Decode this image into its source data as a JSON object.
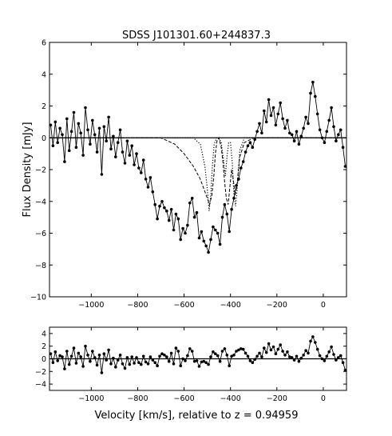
{
  "chart_data": [
    {
      "type": "line",
      "title": "SDSS J101301.60+244837.3",
      "xlabel": "",
      "ylabel": "Flux Density [mJy]",
      "xlim": [
        -1180,
        100
      ],
      "ylim": [
        -10,
        6
      ],
      "xticks": [
        -1000,
        -800,
        -600,
        -400,
        -200,
        0
      ],
      "yticks": [
        -10,
        -8,
        -6,
        -4,
        -2,
        0,
        2,
        4,
        6
      ],
      "grid": false,
      "series": [
        {
          "name": "",
          "style": "solid-markers",
          "x": [
            -1175,
            -1165,
            -1155,
            -1145,
            -1135,
            -1125,
            -1115,
            -1105,
            -1095,
            -1085,
            -1075,
            -1065,
            -1055,
            -1045,
            -1035,
            -1025,
            -1015,
            -1005,
            -995,
            -985,
            -975,
            -965,
            -955,
            -945,
            -935,
            -925,
            -915,
            -905,
            -895,
            -885,
            -875,
            -865,
            -855,
            -845,
            -835,
            -825,
            -815,
            -805,
            -795,
            -785,
            -775,
            -765,
            -755,
            -745,
            -735,
            -725,
            -715,
            -705,
            -695,
            -685,
            -675,
            -665,
            -655,
            -645,
            -635,
            -625,
            -615,
            -605,
            -595,
            -585,
            -575,
            -565,
            -555,
            -545,
            -535,
            -525,
            -515,
            -505,
            -495,
            -485,
            -475,
            -465,
            -455,
            -445,
            -435,
            -425,
            -415,
            -405,
            -395,
            -385,
            -375,
            -365,
            -355,
            -345,
            -335,
            -325,
            -315,
            -305,
            -295,
            -285,
            -275,
            -265,
            -255,
            -245,
            -235,
            -225,
            -215,
            -205,
            -195,
            -185,
            -175,
            -165,
            -155,
            -145,
            -135,
            -125,
            -115,
            -105,
            -95,
            -85,
            -75,
            -65,
            -55,
            -45,
            -35,
            -25,
            -15,
            -5,
            5,
            15,
            25,
            35,
            45,
            55,
            65,
            75,
            85,
            95
          ],
          "y": [
            0.8,
            -0.5,
            1.0,
            -0.3,
            0.6,
            0.2,
            -1.5,
            1.2,
            -0.8,
            0.4,
            1.6,
            -0.6,
            0.9,
            0.3,
            -1.1,
            1.9,
            0.5,
            -0.4,
            1.1,
            0.2,
            -0.9,
            0.6,
            -2.3,
            0.7,
            -0.2,
            1.3,
            -0.7,
            0.1,
            -1.2,
            -0.3,
            0.5,
            -0.9,
            -1.6,
            -0.2,
            -1.1,
            -0.5,
            -1.7,
            -1.0,
            -1.9,
            -2.2,
            -1.4,
            -2.6,
            -3.1,
            -2.5,
            -3.4,
            -4.2,
            -5.1,
            -4.3,
            -4.0,
            -4.4,
            -4.6,
            -5.2,
            -4.5,
            -5.8,
            -4.8,
            -5.1,
            -6.4,
            -5.7,
            -6.0,
            -5.5,
            -4.1,
            -3.8,
            -5.0,
            -4.7,
            -6.3,
            -5.9,
            -6.5,
            -6.8,
            -7.2,
            -6.4,
            -5.6,
            -5.8,
            -6.0,
            -6.7,
            -5.0,
            -4.2,
            -4.8,
            -5.9,
            -4.5,
            -3.8,
            -3.0,
            -2.6,
            -1.9,
            -1.5,
            -0.9,
            -0.5,
            -0.3,
            -0.6,
            -0.1,
            0.4,
            0.9,
            0.3,
            1.7,
            1.0,
            2.4,
            1.4,
            1.9,
            0.8,
            1.5,
            2.2,
            1.2,
            0.6,
            1.1,
            0.3,
            0.2,
            -0.2,
            0.4,
            -0.4,
            0.1,
            0.6,
            1.3,
            0.9,
            2.8,
            3.5,
            2.6,
            1.5,
            0.5,
            0.0,
            -0.3,
            0.4,
            1.1,
            1.9,
            0.7,
            -0.2,
            0.2,
            0.5,
            -0.6,
            -1.8
          ]
        },
        {
          "name": "",
          "style": "dashed",
          "x": [
            -1180,
            -700,
            -640,
            -600,
            -560,
            -530,
            -505,
            -490,
            -480,
            -472,
            -465,
            -458,
            -450,
            -440,
            -432,
            -425,
            -418,
            -410,
            -402,
            -395,
            -388,
            -380,
            -372,
            -360,
            -340,
            -300,
            100
          ],
          "y": [
            0,
            0,
            -0.4,
            -1.0,
            -1.8,
            -2.6,
            -3.6,
            -4.2,
            -3.6,
            -2.4,
            -1.0,
            -0.2,
            0.0,
            -0.6,
            -1.6,
            -2.8,
            -3.8,
            -4.2,
            -3.0,
            -2.0,
            -2.6,
            -3.6,
            -3.0,
            -1.2,
            -0.3,
            0,
            0
          ]
        },
        {
          "name": "",
          "style": "dotted",
          "x": [
            -1180,
            -560,
            -530,
            -510,
            -500,
            -492,
            -485,
            -478,
            -470,
            -460,
            -450,
            -440,
            -430,
            -422,
            -415,
            -408,
            -400,
            -392,
            -385,
            -378,
            -370,
            -360,
            -340,
            100
          ],
          "y": [
            0,
            0,
            -0.4,
            -1.8,
            -3.2,
            -4.6,
            -3.6,
            -1.8,
            -0.4,
            0,
            0,
            -0.3,
            -1.4,
            -2.4,
            -1.2,
            -0.3,
            -0.3,
            -1.6,
            -3.6,
            -4.3,
            -3.0,
            -0.8,
            0,
            0
          ]
        }
      ]
    },
    {
      "type": "line",
      "title": "",
      "xlabel": "Velocity [km/s], relative to z = 0.94959",
      "ylabel": "",
      "xlim": [
        -1180,
        100
      ],
      "ylim": [
        -5,
        5
      ],
      "xticks": [
        -1000,
        -800,
        -600,
        -400,
        -200,
        0
      ],
      "yticks": [
        -4,
        -2,
        0,
        2,
        4
      ],
      "grid": false,
      "series": [
        {
          "name": "",
          "style": "solid-markers",
          "x": [
            -1175,
            -1165,
            -1155,
            -1145,
            -1135,
            -1125,
            -1115,
            -1105,
            -1095,
            -1085,
            -1075,
            -1065,
            -1055,
            -1045,
            -1035,
            -1025,
            -1015,
            -1005,
            -995,
            -985,
            -975,
            -965,
            -955,
            -945,
            -935,
            -925,
            -915,
            -905,
            -895,
            -885,
            -875,
            -865,
            -855,
            -845,
            -835,
            -825,
            -815,
            -805,
            -795,
            -785,
            -775,
            -765,
            -755,
            -745,
            -735,
            -725,
            -715,
            -705,
            -695,
            -685,
            -675,
            -665,
            -655,
            -645,
            -635,
            -625,
            -615,
            -605,
            -595,
            -585,
            -575,
            -565,
            -555,
            -545,
            -535,
            -525,
            -515,
            -505,
            -495,
            -485,
            -475,
            -465,
            -455,
            -445,
            -435,
            -425,
            -415,
            -405,
            -395,
            -385,
            -375,
            -365,
            -355,
            -345,
            -335,
            -325,
            -315,
            -305,
            -295,
            -285,
            -275,
            -265,
            -255,
            -245,
            -235,
            -225,
            -215,
            -205,
            -195,
            -185,
            -175,
            -165,
            -155,
            -145,
            -135,
            -125,
            -115,
            -105,
            -95,
            -85,
            -75,
            -65,
            -55,
            -45,
            -35,
            -25,
            -15,
            -5,
            5,
            15,
            25,
            35,
            45,
            55,
            65,
            75,
            85,
            95
          ],
          "y": [
            0.8,
            -0.6,
            1.1,
            -0.3,
            0.5,
            0.3,
            -1.6,
            1.2,
            -0.9,
            0.4,
            1.7,
            -0.7,
            0.9,
            0.3,
            -1.2,
            2.0,
            0.6,
            -0.4,
            1.2,
            0.2,
            -1.0,
            0.6,
            -2.2,
            0.8,
            -0.2,
            1.4,
            -0.8,
            0.1,
            -1.3,
            -0.2,
            0.6,
            -0.8,
            -1.5,
            0.2,
            -0.9,
            0.3,
            -0.7,
            0.2,
            -0.6,
            -0.9,
            0.4,
            -0.5,
            -0.8,
            0.3,
            -0.2,
            -0.6,
            -1.1,
            0.4,
            0.8,
            0.6,
            0.3,
            -0.4,
            0.9,
            -0.8,
            1.7,
            1.2,
            -1.1,
            0.0,
            -0.3,
            0.5,
            1.6,
            1.2,
            -0.4,
            -0.3,
            -1.2,
            -0.5,
            -0.4,
            -0.6,
            -0.9,
            0.3,
            1.1,
            0.8,
            0.5,
            -0.4,
            1.2,
            1.6,
            0.6,
            -1.1,
            0.4,
            0.6,
            1.2,
            1.4,
            1.6,
            1.5,
            0.9,
            0.4,
            -0.3,
            -0.6,
            -0.1,
            0.4,
            0.9,
            0.3,
            1.7,
            1.0,
            2.4,
            1.4,
            1.9,
            0.8,
            1.5,
            2.2,
            1.2,
            0.6,
            1.1,
            0.3,
            0.2,
            -0.2,
            0.4,
            -0.4,
            0.1,
            0.6,
            1.3,
            0.9,
            2.8,
            3.5,
            2.6,
            1.5,
            0.5,
            0.0,
            -0.3,
            0.4,
            1.1,
            1.9,
            0.7,
            -0.2,
            0.2,
            0.5,
            -0.6,
            -1.8
          ]
        }
      ]
    }
  ]
}
